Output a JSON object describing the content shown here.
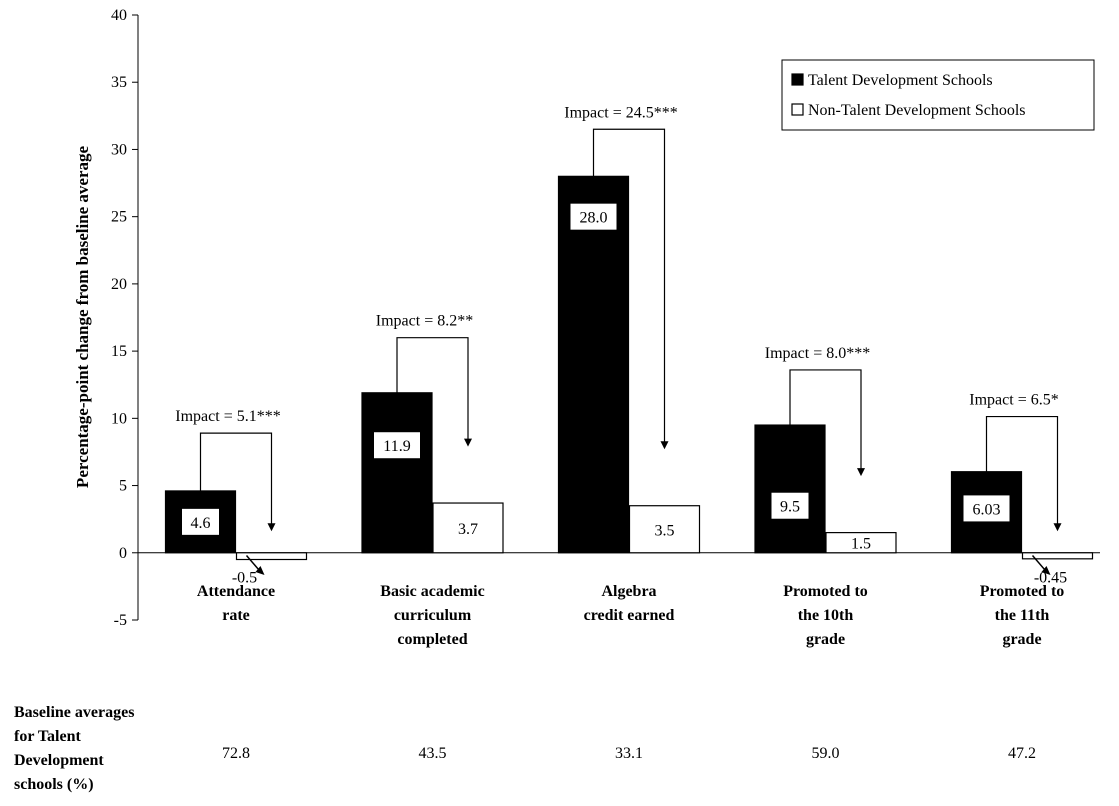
{
  "chart_data": {
    "type": "bar",
    "ylabel": "Percentage-point change from baseline average",
    "ylim": [
      -5,
      40
    ],
    "yticks": [
      "-5",
      "0",
      "5",
      "10",
      "15",
      "20",
      "25",
      "30",
      "35",
      "40"
    ],
    "categories": [
      [
        "Attendance",
        "rate"
      ],
      [
        "Basic academic",
        "curriculum",
        "completed"
      ],
      [
        "Algebra",
        "credit earned"
      ],
      [
        "Promoted to",
        "the 10th",
        "grade"
      ],
      [
        "Promoted to",
        "the 11th",
        "grade"
      ]
    ],
    "series": [
      {
        "name": "Talent Development Schools",
        "color": "#000000",
        "values": [
          4.6,
          11.9,
          28.0,
          9.5,
          6.03
        ],
        "labels": [
          "4.6",
          "11.9",
          "28.0",
          "9.5",
          "6.03"
        ]
      },
      {
        "name": "Non-Talent Development Schools",
        "color": "#ffffff",
        "values": [
          -0.5,
          3.7,
          3.5,
          1.5,
          -0.45
        ],
        "labels": [
          "-0.5",
          "3.7",
          "3.5",
          "1.5",
          "-0.45"
        ]
      }
    ],
    "impacts": [
      "Impact = 5.1***",
      "Impact = 8.2**",
      "Impact = 24.5***",
      "Impact = 8.0***",
      "Impact = 6.5*"
    ],
    "legend_position": "top-right",
    "grid": false,
    "baseline": {
      "label": [
        "Baseline averages",
        "for Talent",
        "Development",
        "schools (%)"
      ],
      "values": [
        "72.8",
        "43.5",
        "33.1",
        "59.0",
        "47.2"
      ]
    }
  }
}
